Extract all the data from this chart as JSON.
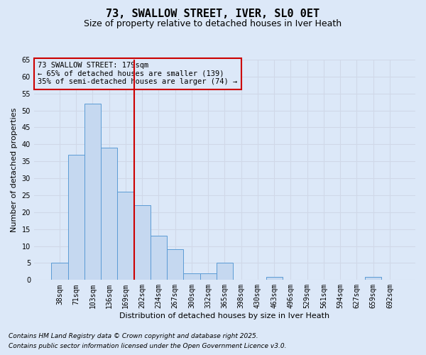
{
  "title_line1": "73, SWALLOW STREET, IVER, SL0 0ET",
  "title_line2": "Size of property relative to detached houses in Iver Heath",
  "xlabel": "Distribution of detached houses by size in Iver Heath",
  "ylabel": "Number of detached properties",
  "categories": [
    "38sqm",
    "71sqm",
    "103sqm",
    "136sqm",
    "169sqm",
    "202sqm",
    "234sqm",
    "267sqm",
    "300sqm",
    "332sqm",
    "365sqm",
    "398sqm",
    "430sqm",
    "463sqm",
    "496sqm",
    "529sqm",
    "561sqm",
    "594sqm",
    "627sqm",
    "659sqm",
    "692sqm"
  ],
  "values": [
    5,
    37,
    52,
    39,
    26,
    22,
    13,
    9,
    2,
    2,
    5,
    0,
    0,
    1,
    0,
    0,
    0,
    0,
    0,
    1,
    0
  ],
  "bar_color": "#c5d8f0",
  "bar_edge_color": "#5b9bd5",
  "grid_color": "#d0d8e8",
  "background_color": "#dce8f8",
  "vline_x": 4.5,
  "vline_color": "#cc0000",
  "annotation_text": "73 SWALLOW STREET: 179sqm\n← 65% of detached houses are smaller (139)\n35% of semi-detached houses are larger (74) →",
  "annotation_box_color": "#cc0000",
  "ylim": [
    0,
    65
  ],
  "yticks": [
    0,
    5,
    10,
    15,
    20,
    25,
    30,
    35,
    40,
    45,
    50,
    55,
    60,
    65
  ],
  "footer_line1": "Contains HM Land Registry data © Crown copyright and database right 2025.",
  "footer_line2": "Contains public sector information licensed under the Open Government Licence v3.0.",
  "title_fontsize": 11,
  "subtitle_fontsize": 9,
  "axis_label_fontsize": 8,
  "tick_fontsize": 7,
  "annotation_fontsize": 7.5,
  "footer_fontsize": 6.5
}
